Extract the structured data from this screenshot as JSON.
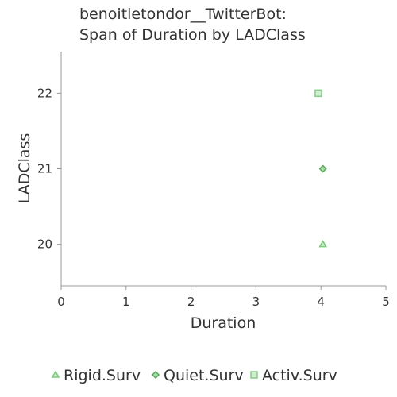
{
  "chart_data": {
    "type": "scatter",
    "title_lines": [
      "benoitletondor__TwitterBot:",
      "Span of Duration by LADClass"
    ],
    "xlabel": "Duration",
    "ylabel": "LADClass",
    "xlim": [
      0,
      5
    ],
    "ylim": [
      19.45,
      22.55
    ],
    "x_ticks": [
      0,
      1,
      2,
      3,
      4,
      5
    ],
    "y_ticks": [
      20,
      21,
      22
    ],
    "grid": false,
    "legend_position": "bottom",
    "series": [
      {
        "name": "Rigid.Surv",
        "marker": "triangle",
        "color": "#77cc77",
        "fill": "#c9eec9",
        "points": [
          {
            "x": 4.03,
            "y": 20
          }
        ]
      },
      {
        "name": "Quiet.Surv",
        "marker": "diamond",
        "color": "#55aa55",
        "fill": "#a8dca8",
        "points": [
          {
            "x": 4.03,
            "y": 21
          }
        ]
      },
      {
        "name": "Activ.Surv",
        "marker": "square",
        "color": "#88cc88",
        "fill": "#cfeecf",
        "points": [
          {
            "x": 3.96,
            "y": 22
          }
        ]
      }
    ]
  }
}
